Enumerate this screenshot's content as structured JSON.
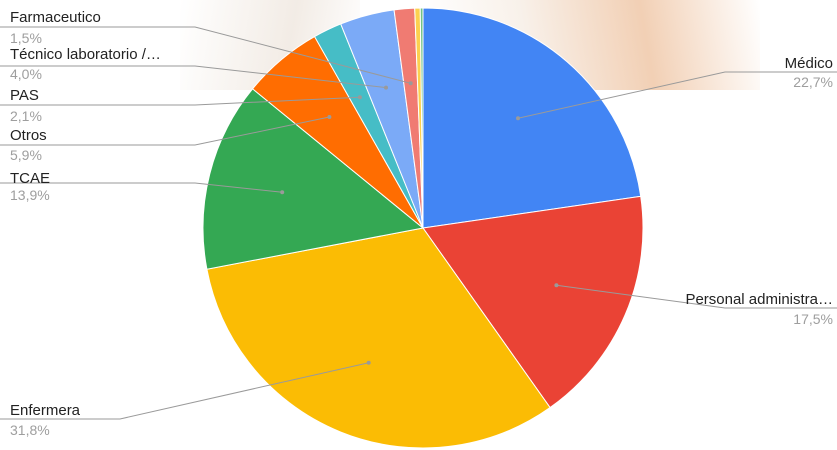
{
  "chart_data": {
    "type": "pie",
    "slices": [
      {
        "label": "Médico",
        "pct_label": "22,7%",
        "value": 22.7,
        "color": "#4285f4"
      },
      {
        "label": "Personal administra…",
        "pct_label": "17,5%",
        "value": 17.5,
        "color": "#ea4335"
      },
      {
        "label": "Enfermera",
        "pct_label": "31,8%",
        "value": 31.8,
        "color": "#fbbc04"
      },
      {
        "label": "TCAE",
        "pct_label": "13,9%",
        "value": 13.9,
        "color": "#34a853"
      },
      {
        "label": "Otros",
        "pct_label": "5,9%",
        "value": 5.9,
        "color": "#ff6d01"
      },
      {
        "label": "PAS",
        "pct_label": "2,1%",
        "value": 2.1,
        "color": "#46bdc6"
      },
      {
        "label": "Técnico laboratorio /…",
        "pct_label": "4,0%",
        "value": 4.0,
        "color": "#7baaf7"
      },
      {
        "label": "Farmaceutico",
        "pct_label": "1,5%",
        "value": 1.5,
        "color": "#f07b72"
      },
      {
        "label": "",
        "pct_label": "",
        "value": 0.4,
        "color": "#fcd04f"
      },
      {
        "label": "",
        "pct_label": "",
        "value": 0.2,
        "color": "#71c287"
      }
    ]
  }
}
